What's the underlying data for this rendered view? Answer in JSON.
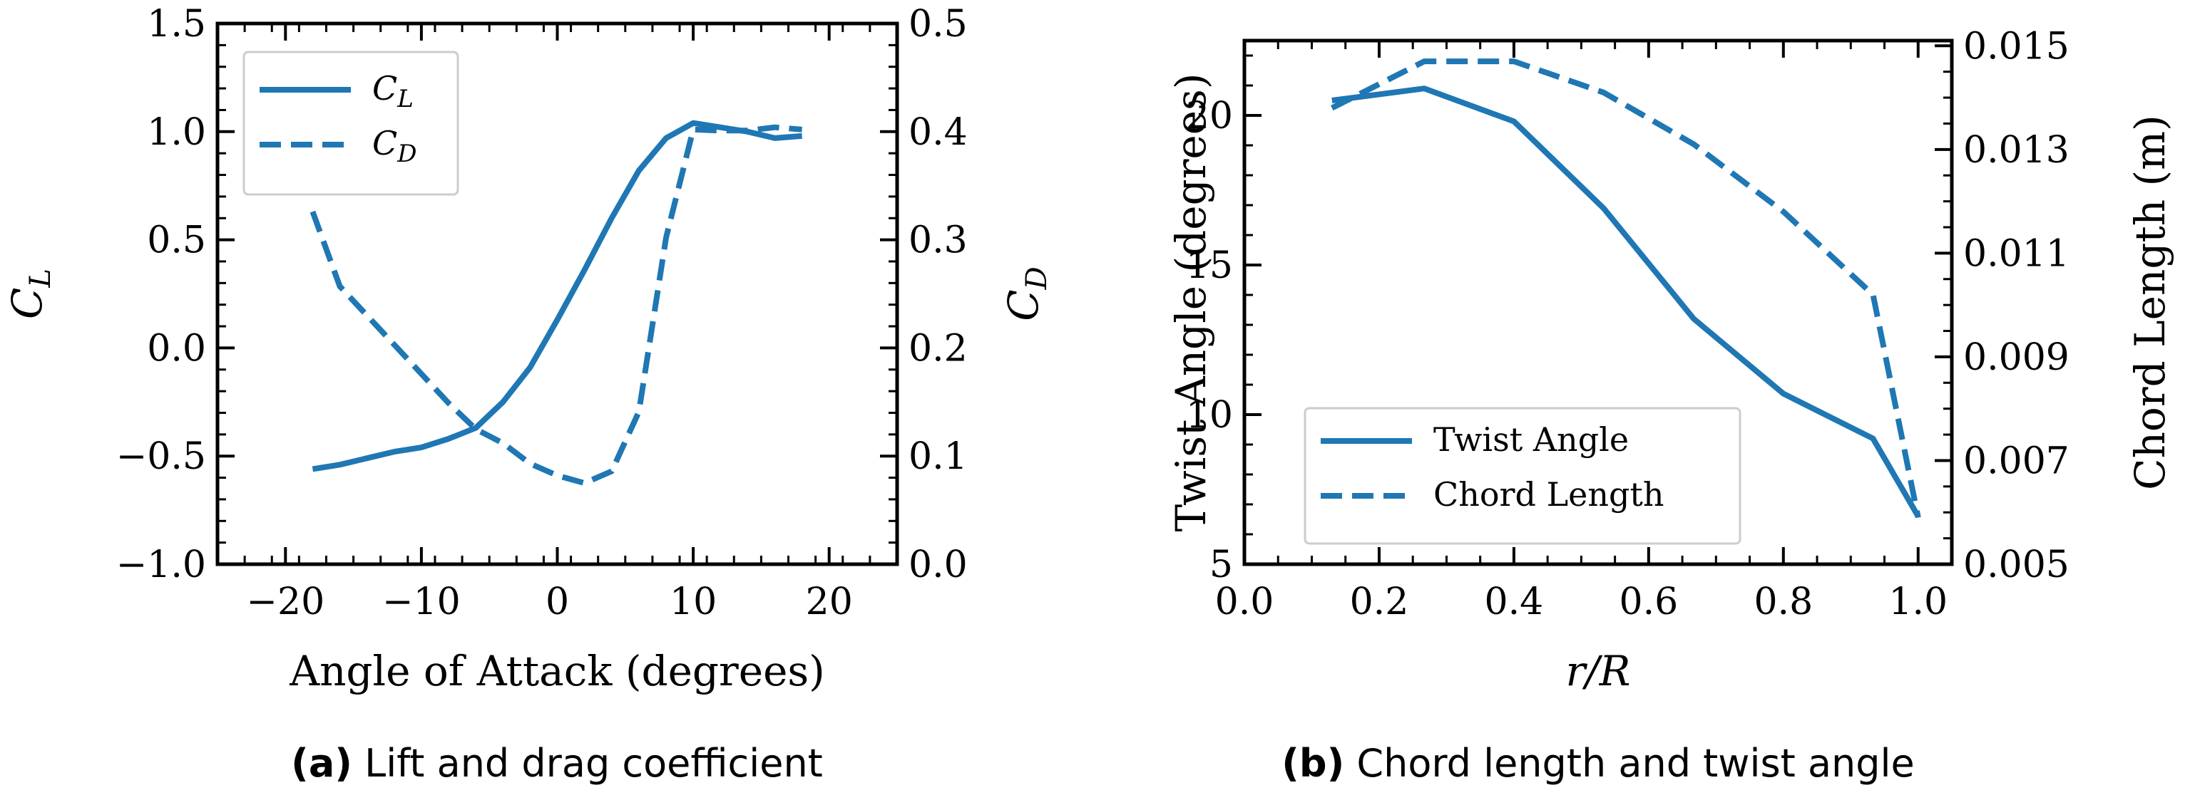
{
  "colors": {
    "series": "#1f77b4",
    "axis": "#000000",
    "legend_border": "#cccccc"
  },
  "chart_data": [
    {
      "type": "line",
      "panel_label": "(a)",
      "caption": "Lift and drag coefficient",
      "xlabel": "Angle of Attack (degrees)",
      "ylabel_left": "C_L",
      "ylabel_right": "C_D",
      "xlim": [
        -25,
        25
      ],
      "ylim_left": [
        -1.0,
        1.5
      ],
      "ylim_right": [
        0.0,
        0.5
      ],
      "xticks": [
        -20,
        -10,
        0,
        10,
        20
      ],
      "xtick_labels": [
        "−20",
        "−10",
        "0",
        "10",
        "20"
      ],
      "yticks_left": [
        -1.0,
        -0.5,
        0.0,
        0.5,
        1.0,
        1.5
      ],
      "ytick_labels_left": [
        "−1.0",
        "−0.5",
        "0.0",
        "0.5",
        "1.0",
        "1.5"
      ],
      "yticks_right": [
        0.0,
        0.1,
        0.2,
        0.3,
        0.4,
        0.5
      ],
      "ytick_labels_right": [
        "0.0",
        "0.1",
        "0.2",
        "0.3",
        "0.4",
        "0.5"
      ],
      "legend": {
        "placement": "top-left",
        "entries": [
          "C_L",
          "C_D"
        ]
      },
      "series": [
        {
          "name": "C_L",
          "axis": "left",
          "style": "solid",
          "x": [
            -18,
            -16,
            -14,
            -12,
            -10,
            -8,
            -6,
            -4,
            -2,
            0,
            2,
            4,
            6,
            8,
            10,
            12,
            14,
            16,
            18
          ],
          "y": [
            -0.56,
            -0.54,
            -0.51,
            -0.48,
            -0.46,
            -0.42,
            -0.37,
            -0.25,
            -0.09,
            0.13,
            0.36,
            0.6,
            0.82,
            0.97,
            1.04,
            1.02,
            1.0,
            0.97,
            0.98
          ]
        },
        {
          "name": "C_D",
          "axis": "right",
          "style": "dashed",
          "x": [
            -18,
            -16,
            -14,
            -12,
            -10,
            -8,
            -6,
            -4,
            -2,
            0,
            2,
            4,
            6,
            8,
            10,
            12,
            14,
            16,
            18
          ],
          "y": [
            0.326,
            0.257,
            0.23,
            0.203,
            0.176,
            0.149,
            0.125,
            0.112,
            0.093,
            0.082,
            0.075,
            0.086,
            0.141,
            0.302,
            0.402,
            0.401,
            0.401,
            0.404,
            0.402
          ]
        }
      ]
    },
    {
      "type": "line",
      "panel_label": "(b)",
      "caption": "Chord length and twist angle",
      "xlabel": "r/R",
      "ylabel_left": "Twist Angle (degrees)",
      "ylabel_right": "Chord Length (m)",
      "xlim": [
        0.0,
        1.05
      ],
      "ylim_left": [
        5,
        22.5
      ],
      "ylim_right": [
        0.005,
        0.0151
      ],
      "xticks": [
        0.0,
        0.2,
        0.4,
        0.6,
        0.8,
        1.0
      ],
      "xtick_labels": [
        "0.0",
        "0.2",
        "0.4",
        "0.6",
        "0.8",
        "1.0"
      ],
      "yticks_left": [
        5,
        10,
        15,
        20
      ],
      "ytick_labels_left": [
        "5",
        "10",
        "15",
        "20"
      ],
      "yticks_right": [
        0.005,
        0.007,
        0.009,
        0.011,
        0.013,
        0.015
      ],
      "ytick_labels_right": [
        "0.005",
        "0.007",
        "0.009",
        "0.011",
        "0.013",
        "0.015"
      ],
      "legend": {
        "placement": "bottom-left",
        "entries": [
          "Twist Angle",
          "Chord Length"
        ]
      },
      "series": [
        {
          "name": "Twist Angle",
          "axis": "left",
          "style": "solid",
          "x": [
            0.13,
            0.267,
            0.4,
            0.533,
            0.667,
            0.8,
            0.933,
            1.0
          ],
          "y": [
            20.5,
            20.9,
            19.8,
            16.9,
            13.2,
            10.7,
            9.2,
            6.6
          ]
        },
        {
          "name": "Chord Length",
          "axis": "right",
          "style": "dashed",
          "x": [
            0.13,
            0.267,
            0.4,
            0.533,
            0.667,
            0.8,
            0.933,
            1.0
          ],
          "y": [
            0.0138,
            0.0147,
            0.0147,
            0.0141,
            0.0131,
            0.0118,
            0.0102,
            0.0059
          ]
        }
      ]
    }
  ]
}
